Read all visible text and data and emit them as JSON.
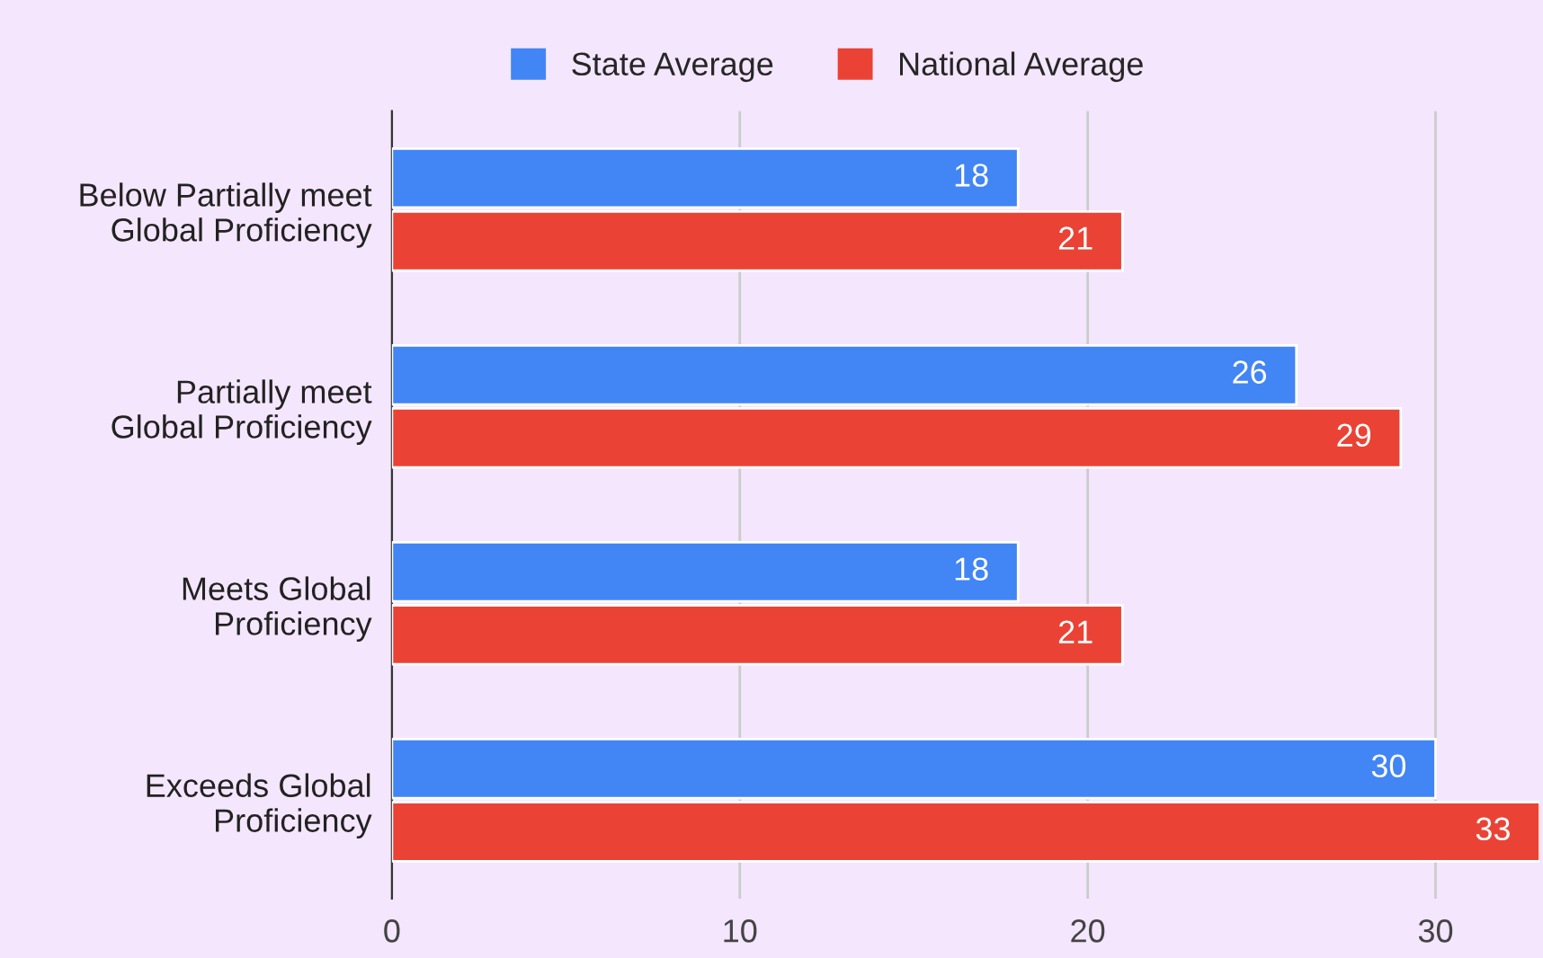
{
  "chart_data": {
    "type": "bar",
    "orientation": "horizontal",
    "categories": [
      "Below Partially meet\nGlobal Proficiency",
      "Partially meet\nGlobal Proficiency",
      "Meets Global\nProficiency",
      "Exceeds Global\nProficiency"
    ],
    "series": [
      {
        "name": "State Average",
        "color": "#4285f4",
        "values": [
          18,
          26,
          18,
          30
        ]
      },
      {
        "name": "National Average",
        "color": "#ea4335",
        "values": [
          21,
          29,
          21,
          33
        ]
      }
    ],
    "xlim": [
      0,
      33
    ],
    "xticks": [
      0,
      10,
      20,
      30
    ],
    "grid": "x",
    "legend": "top",
    "data_labels": true
  }
}
